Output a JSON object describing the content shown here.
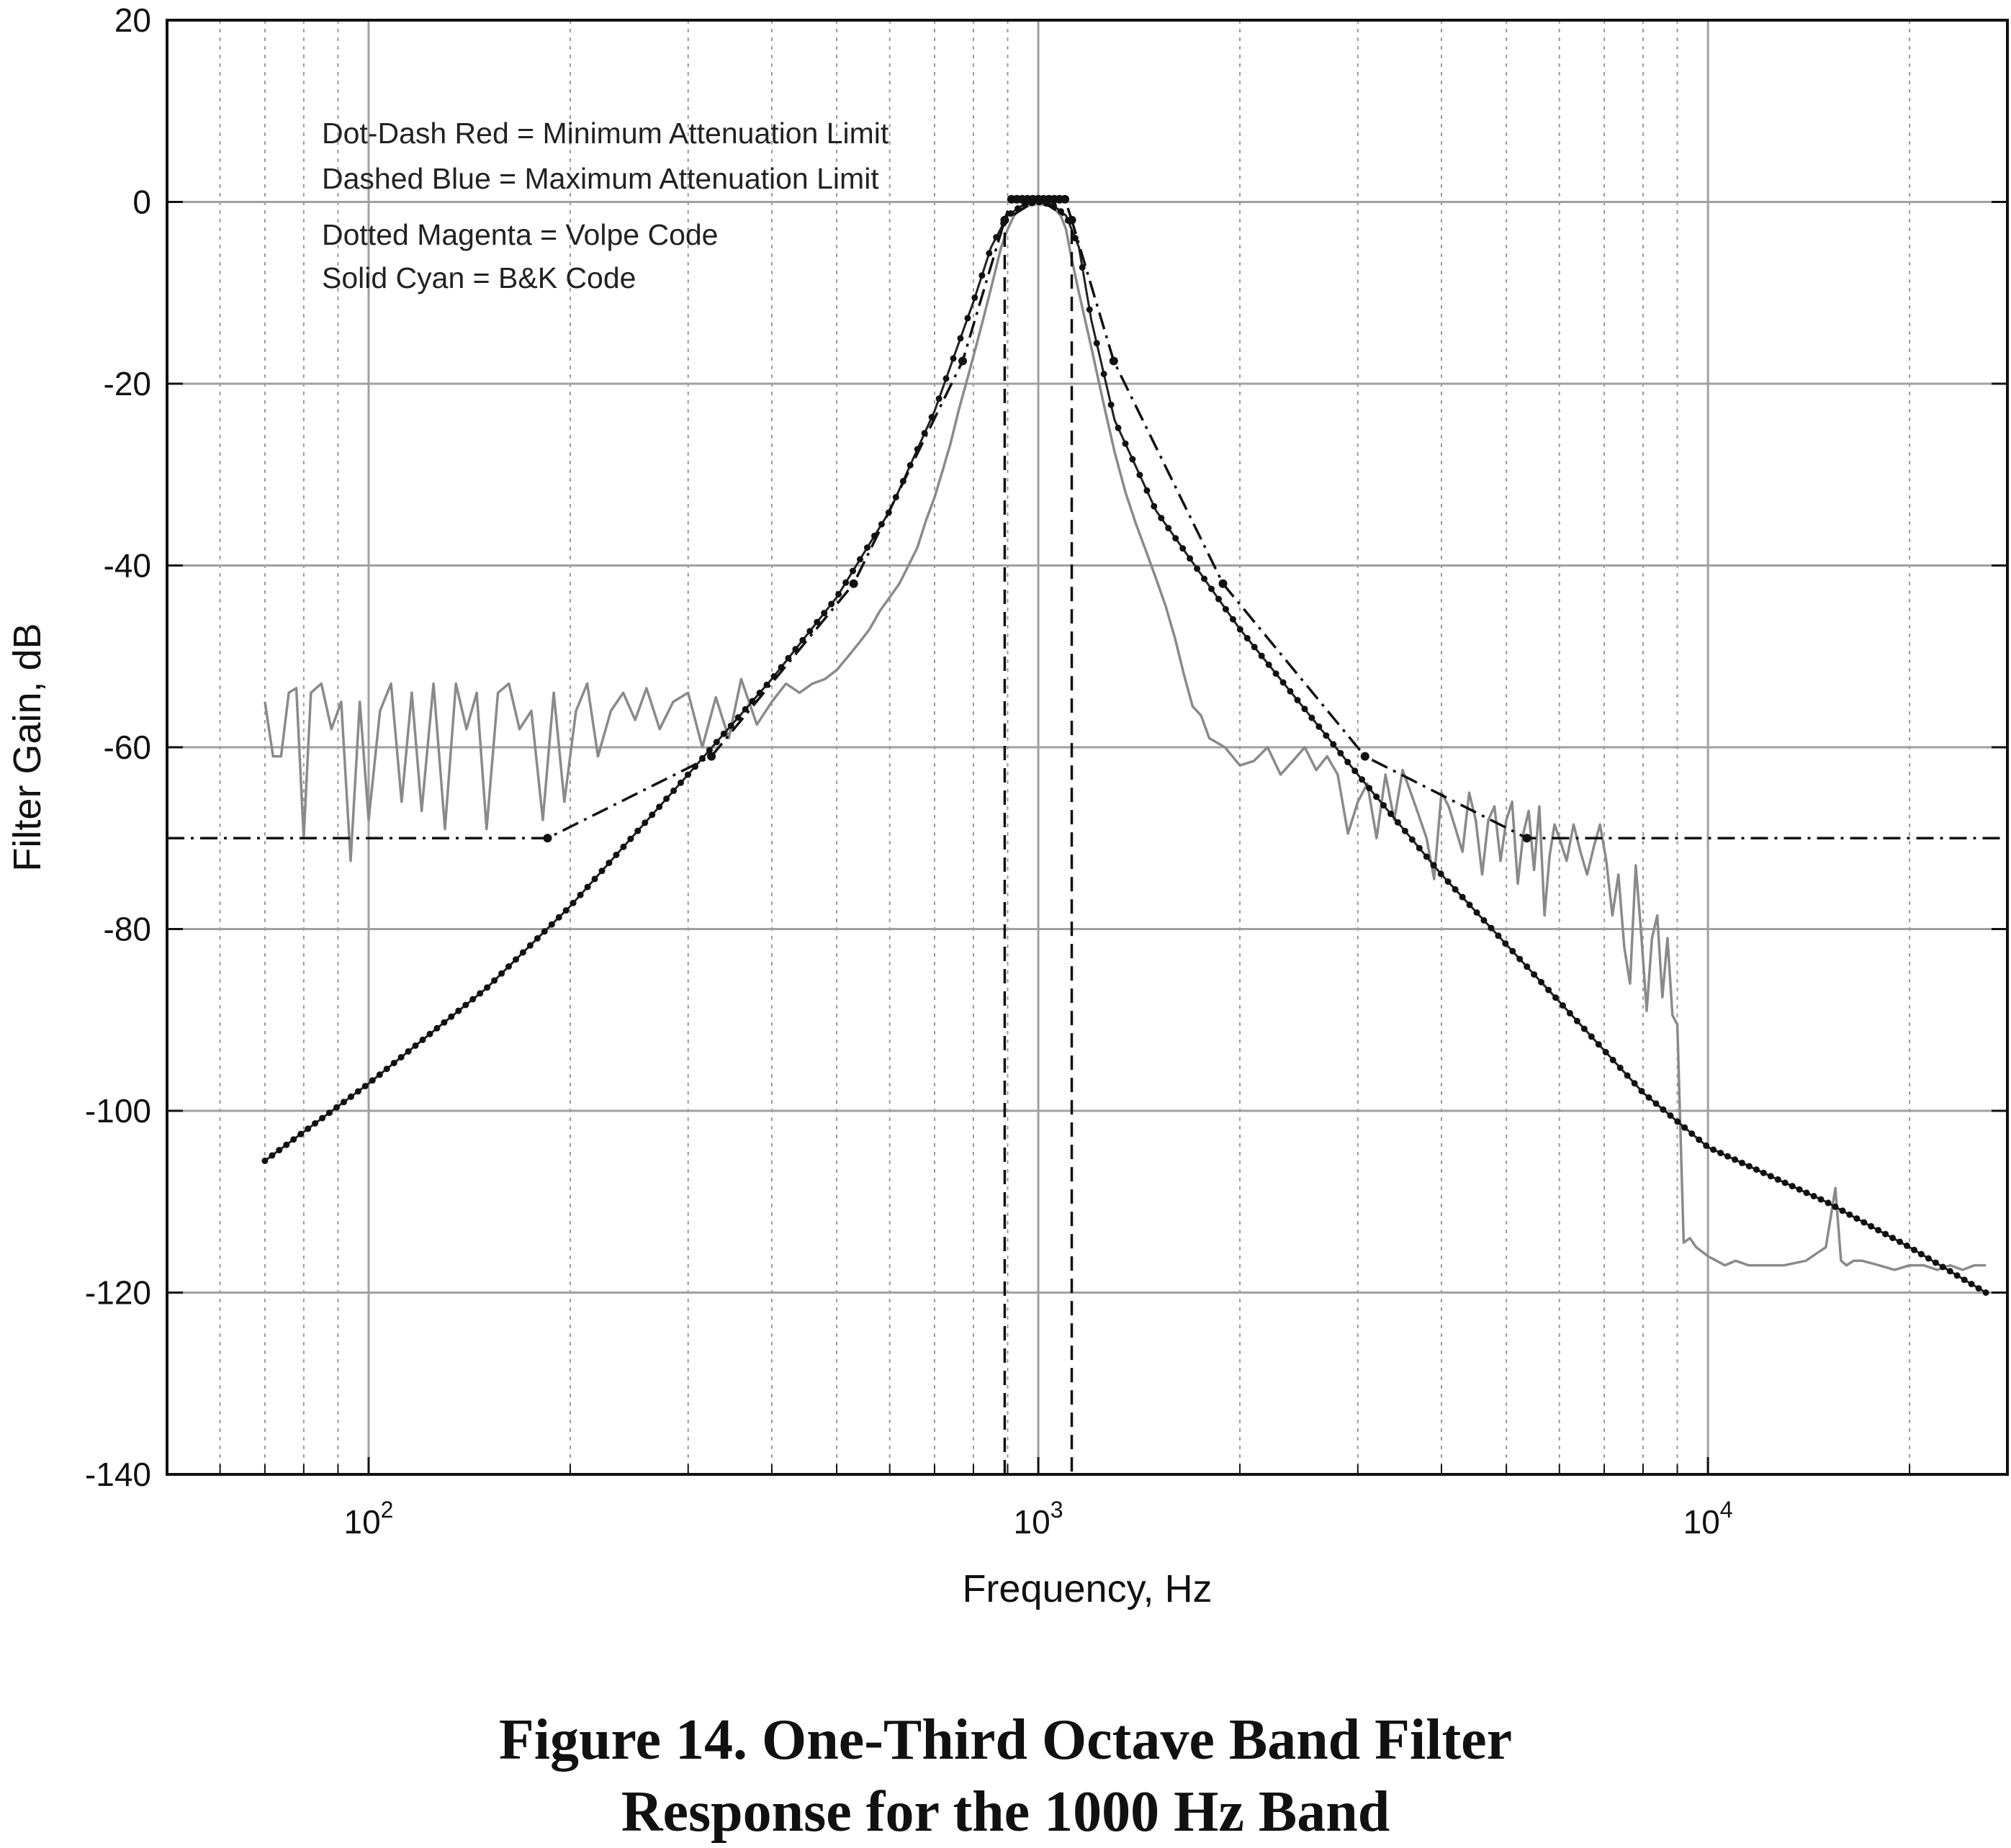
{
  "chart_data": {
    "type": "line",
    "xlabel": "Frequency, Hz",
    "ylabel": "Filter Gain, dB",
    "x_scale": "log",
    "xlim": [
      50,
      28000
    ],
    "ylim": [
      -140,
      20
    ],
    "x_ticks": [
      {
        "value": 100,
        "base": "10",
        "exp": "2"
      },
      {
        "value": 1000,
        "base": "10",
        "exp": "3"
      },
      {
        "value": 10000,
        "base": "10",
        "exp": "4"
      }
    ],
    "y_ticks": [
      "20",
      "0",
      "-20",
      "-40",
      "-60",
      "-80",
      "-100",
      "-120",
      "-140"
    ],
    "grid": true,
    "legend": {
      "position": "top-left",
      "entries": [
        {
          "text": "Dot-Dash Red = Minimum Attenuation Limit",
          "color": "#222222"
        },
        {
          "text": "Dashed Blue = Maximum Attenuation Limit",
          "color": "#222222"
        },
        {
          "text": "Dotted Magenta = Volpe Code",
          "color": "#222222"
        },
        {
          "text": "Solid Cyan = B&K Code",
          "color": "#8a8a8a"
        }
      ]
    },
    "series": [
      {
        "key": "min_limit",
        "style": "dot-dash",
        "color": "#111111",
        "x": [
          50,
          185,
          325,
          530,
          771,
          891,
          1000,
          1122,
          1296,
          1887,
          3075,
          5365,
          28000
        ],
        "y": [
          -70,
          -70,
          -61,
          -42,
          -17.5,
          -2,
          0.3,
          -2,
          -17.5,
          -42,
          -61,
          -70,
          -70
        ]
      },
      {
        "key": "max_limit",
        "style": "dashed",
        "color": "#111111",
        "x": [
          891,
          891,
          912,
          1000,
          1096,
          1122,
          1122
        ],
        "y": [
          -140,
          -2,
          0.3,
          0.3,
          0.3,
          -2,
          -140
        ]
      },
      {
        "key": "volpe",
        "style": "dotted-markers",
        "color": "#222222",
        "x": [
          70,
          100,
          150,
          200,
          300,
          400,
          500,
          600,
          700,
          800,
          850,
          900,
          950,
          1000,
          1050,
          1100,
          1150,
          1200,
          1300,
          1500,
          2000,
          3000,
          4000,
          6000,
          8000,
          10000,
          15000,
          20000,
          26000
        ],
        "y": [
          -105.5,
          -97,
          -86.5,
          -77.5,
          -63,
          -52.5,
          -43.5,
          -34,
          -23,
          -11,
          -5,
          -1.5,
          -0.3,
          0,
          -0.3,
          -1.5,
          -5,
          -13,
          -24,
          -34,
          -47,
          -63,
          -74,
          -88,
          -98,
          -104,
          -110,
          -115,
          -120
        ]
      },
      {
        "key": "bk",
        "style": "solid",
        "color": "#8a8a8a",
        "x": [
          70,
          72,
          74,
          76,
          78,
          80,
          82,
          85,
          88,
          91,
          94,
          97,
          100,
          104,
          108,
          112,
          116,
          120,
          125,
          130,
          135,
          140,
          145,
          150,
          156,
          162,
          168,
          175,
          182,
          189,
          196,
          204,
          212,
          220,
          230,
          240,
          250,
          260,
          272,
          285,
          300,
          315,
          330,
          345,
          360,
          380,
          400,
          420,
          440,
          460,
          480,
          500,
          520,
          540,
          560,
          580,
          600,
          620,
          640,
          660,
          680,
          700,
          720,
          740,
          760,
          780,
          800,
          820,
          840,
          860,
          880,
          900,
          920,
          950,
          1000,
          1050,
          1080,
          1100,
          1120,
          1150,
          1200,
          1250,
          1300,
          1350,
          1400,
          1450,
          1500,
          1550,
          1600,
          1650,
          1700,
          1750,
          1800,
          1900,
          2000,
          2100,
          2200,
          2300,
          2400,
          2500,
          2600,
          2700,
          2800,
          2900,
          3000,
          3100,
          3200,
          3300,
          3400,
          3500,
          3600,
          3700,
          3800,
          3900,
          4000,
          4100,
          4200,
          4300,
          4400,
          4500,
          4600,
          4700,
          4800,
          4900,
          5000,
          5100,
          5200,
          5300,
          5400,
          5500,
          5600,
          5700,
          5800,
          5900,
          6000,
          6150,
          6300,
          6450,
          6600,
          6750,
          6900,
          7050,
          7200,
          7350,
          7500,
          7650,
          7800,
          7950,
          8100,
          8250,
          8400,
          8550,
          8700,
          8850,
          9000,
          9200,
          9400,
          9600,
          9800,
          10000,
          10300,
          10600,
          11000,
          11500,
          12000,
          13000,
          14000,
          15000,
          15500,
          15800,
          16100,
          16500,
          17000,
          18000,
          19000,
          20000,
          21000,
          22000,
          23000,
          24000,
          25000,
          26000
        ],
        "y": [
          -55,
          -61,
          -61,
          -54,
          -53.5,
          -70,
          -54,
          -53,
          -58,
          -55,
          -72.5,
          -55,
          -68,
          -56,
          -53,
          -66,
          -54,
          -67,
          -53,
          -69,
          -53,
          -58,
          -54,
          -69,
          -54,
          -53,
          -58,
          -56,
          -68,
          -54,
          -66,
          -56,
          -53,
          -61,
          -56,
          -54,
          -57,
          -53.5,
          -58,
          -55,
          -54,
          -60,
          -54.5,
          -59,
          -52.5,
          -57.5,
          -55,
          -53,
          -54,
          -53,
          -52.5,
          -51.5,
          -50,
          -48.5,
          -47,
          -45,
          -43.5,
          -42,
          -40,
          -38,
          -35,
          -32.5,
          -29.5,
          -26.5,
          -23,
          -20,
          -17,
          -14,
          -11,
          -8,
          -5,
          -3,
          -1.5,
          -0.5,
          -0.2,
          -0.5,
          -1.5,
          -3,
          -6,
          -10,
          -16,
          -22,
          -27.5,
          -32,
          -35.5,
          -38.5,
          -41.5,
          -44.5,
          -48,
          -52,
          -55.5,
          -56.5,
          -59,
          -60,
          -62,
          -61.5,
          -60,
          -63,
          -61.5,
          -60,
          -62.5,
          -61,
          -63,
          -69.5,
          -66,
          -64,
          -70,
          -63,
          -68,
          -62.5,
          -65,
          -67.5,
          -70,
          -74.5,
          -65,
          -66.5,
          -69,
          -71.5,
          -65,
          -68,
          -74,
          -68,
          -66.5,
          -72.5,
          -68,
          -66,
          -75,
          -69.5,
          -67,
          -73.5,
          -66.5,
          -78.5,
          -72,
          -68.5,
          -70,
          -72.5,
          -68.5,
          -71.5,
          -74,
          -71,
          -68.5,
          -72.5,
          -78.5,
          -74,
          -82,
          -86,
          -73,
          -80.5,
          -89,
          -81,
          -78.5,
          -87.5,
          -81,
          -89.5,
          -90.5,
          -114.5,
          -114,
          -115,
          -115.5,
          -116,
          -116.5,
          -117,
          -116.5,
          -117,
          -117,
          -117,
          -116.5,
          -115,
          -108.5,
          -116.5,
          -117,
          -116.5,
          -116.5,
          -117,
          -117.5,
          -117,
          -117,
          -117.5,
          -117,
          -117.5,
          -117,
          -117
        ]
      }
    ]
  },
  "caption": {
    "line1": "Figure 14.  One-Third Octave Band Filter",
    "line2": "Response for the 1000 Hz Band"
  }
}
